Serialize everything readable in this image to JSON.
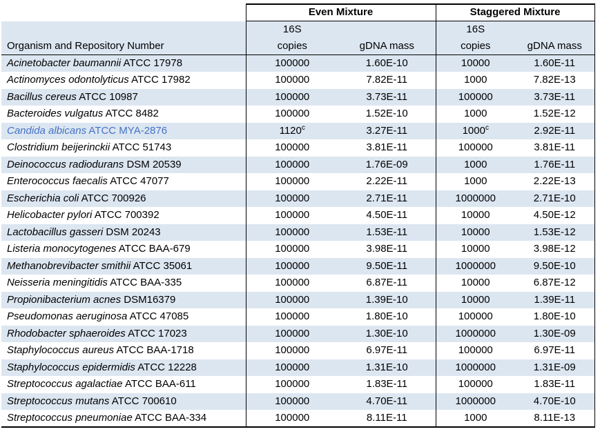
{
  "colors": {
    "stripe": "#dce6f1",
    "highlight_text": "#4472c4",
    "border": "#000000"
  },
  "table": {
    "groups": [
      {
        "label": "Even Mixture"
      },
      {
        "label": "Staggered Mixture"
      }
    ],
    "subheaders": {
      "rrna": "16S",
      "copies": "copies",
      "gdna_mass": "gDNA mass",
      "organism": "Organism and Repository Number"
    },
    "rows": [
      {
        "name_italic": "Acinetobacter baumannii",
        "name_rest": "ATCC 17978",
        "even_copies": "100000",
        "even_mass": "1.60E-10",
        "stag_copies": "10000",
        "stag_mass": "1.60E-11"
      },
      {
        "name_italic": "Actinomyces odontolyticus",
        "name_rest": "ATCC 17982",
        "even_copies": "100000",
        "even_mass": "7.82E-11",
        "stag_copies": "1000",
        "stag_mass": "7.82E-13"
      },
      {
        "name_italic": "Bacillus cereus",
        "name_rest": "ATCC 10987",
        "even_copies": "100000",
        "even_mass": "3.73E-11",
        "stag_copies": "100000",
        "stag_mass": "3.73E-11"
      },
      {
        "name_italic": "Bacteroides vulgatus",
        "name_rest": "ATCC 8482",
        "even_copies": "100000",
        "even_mass": "1.52E-10",
        "stag_copies": "1000",
        "stag_mass": "1.52E-12"
      },
      {
        "name_italic": "Candida albicans",
        "name_rest": "ATCC MYA-2876",
        "even_copies": "1120",
        "even_copies_sup": "c",
        "even_mass": "3.27E-11",
        "stag_copies": "1000",
        "stag_copies_sup": "c",
        "stag_mass": "2.92E-11",
        "highlight": true
      },
      {
        "name_italic": "Clostridium beijerinckii",
        "name_rest": "ATCC 51743",
        "even_copies": "100000",
        "even_mass": "3.81E-11",
        "stag_copies": "100000",
        "stag_mass": "3.81E-11"
      },
      {
        "name_italic": "Deinococcus radiodurans",
        "name_rest": "DSM 20539",
        "even_copies": "100000",
        "even_mass": "1.76E-09",
        "stag_copies": "1000",
        "stag_mass": "1.76E-11"
      },
      {
        "name_italic": "Enterococcus faecalis",
        "name_rest": "ATCC 47077",
        "even_copies": "100000",
        "even_mass": "2.22E-11",
        "stag_copies": "1000",
        "stag_mass": "2.22E-13"
      },
      {
        "name_italic": "Escherichia coli",
        "name_rest": "ATCC 700926",
        "even_copies": "100000",
        "even_mass": "2.71E-11",
        "stag_copies": "1000000",
        "stag_mass": "2.71E-10"
      },
      {
        "name_italic": "Helicobacter pylori",
        "name_rest": "ATCC 700392",
        "even_copies": "100000",
        "even_mass": "4.50E-11",
        "stag_copies": "10000",
        "stag_mass": "4.50E-12"
      },
      {
        "name_italic": "Lactobacillus gasseri",
        "name_rest": "DSM 20243",
        "even_copies": "100000",
        "even_mass": "1.53E-11",
        "stag_copies": "10000",
        "stag_mass": "1.53E-12"
      },
      {
        "name_italic": "Listeria monocytogenes",
        "name_rest": "ATCC BAA-679",
        "even_copies": "100000",
        "even_mass": "3.98E-11",
        "stag_copies": "10000",
        "stag_mass": "3.98E-12"
      },
      {
        "name_italic": "Methanobrevibacter smithii",
        "name_rest": "ATCC 35061",
        "even_copies": "100000",
        "even_mass": "9.50E-11",
        "stag_copies": "1000000",
        "stag_mass": "9.50E-10"
      },
      {
        "name_italic": "Neisseria meningitidis",
        "name_rest": "ATCC BAA-335",
        "even_copies": "100000",
        "even_mass": "6.87E-11",
        "stag_copies": "10000",
        "stag_mass": "6.87E-12"
      },
      {
        "name_italic": "Propionibacterium acnes",
        "name_rest": "DSM16379",
        "even_copies": "100000",
        "even_mass": "1.39E-10",
        "stag_copies": "10000",
        "stag_mass": "1.39E-11"
      },
      {
        "name_italic": "Pseudomonas aeruginosa",
        "name_rest": "ATCC 47085",
        "even_copies": "100000",
        "even_mass": "1.80E-10",
        "stag_copies": "100000",
        "stag_mass": "1.80E-10"
      },
      {
        "name_italic": "Rhodobacter sphaeroides",
        "name_rest": "ATCC 17023",
        "even_copies": "100000",
        "even_mass": "1.30E-10",
        "stag_copies": "1000000",
        "stag_mass": "1.30E-09"
      },
      {
        "name_italic": "Staphylococcus aureus",
        "name_rest": "ATCC BAA-1718",
        "even_copies": "100000",
        "even_mass": "6.97E-11",
        "stag_copies": "100000",
        "stag_mass": "6.97E-11"
      },
      {
        "name_italic": "Staphylococcus epidermidis",
        "name_rest": "ATCC 12228",
        "even_copies": "100000",
        "even_mass": "1.31E-10",
        "stag_copies": "1000000",
        "stag_mass": "1.31E-09"
      },
      {
        "name_italic": "Streptococcus agalactiae",
        "name_rest": "ATCC BAA-611",
        "even_copies": "100000",
        "even_mass": "1.83E-11",
        "stag_copies": "100000",
        "stag_mass": "1.83E-11"
      },
      {
        "name_italic": "Streptococcus mutans",
        "name_rest": "ATCC 700610",
        "even_copies": "100000",
        "even_mass": "4.70E-11",
        "stag_copies": "1000000",
        "stag_mass": "4.70E-10"
      },
      {
        "name_italic": "Streptococcus pneumoniae",
        "name_rest": "ATCC BAA-334",
        "even_copies": "100000",
        "even_mass": "8.11E-11",
        "stag_copies": "1000",
        "stag_mass": "8.11E-13"
      }
    ]
  }
}
